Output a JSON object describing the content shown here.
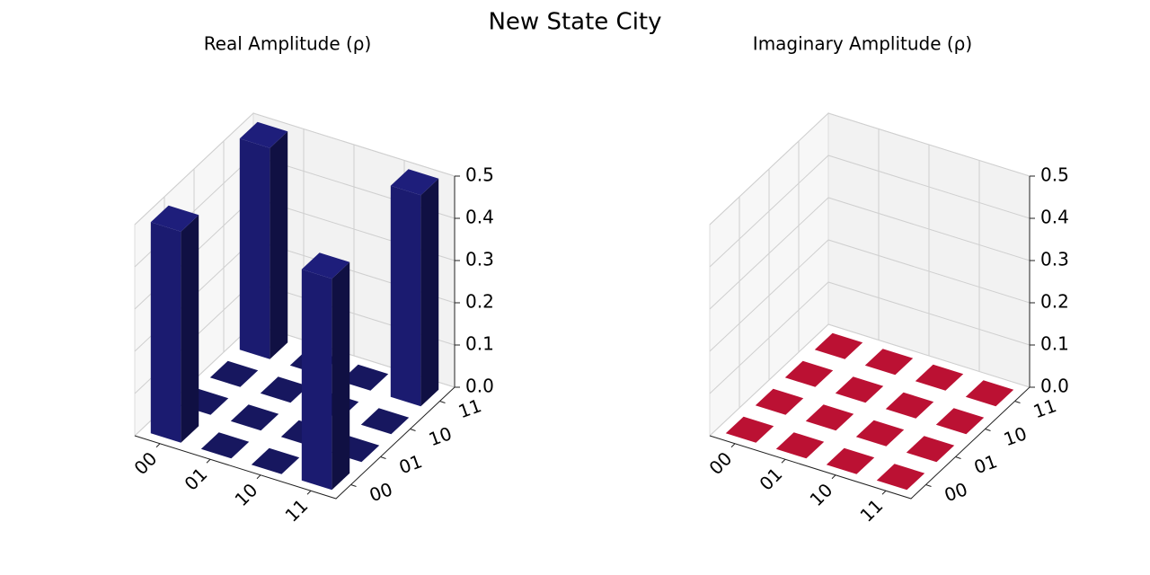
{
  "title": "New State City",
  "chart_data": [
    {
      "type": "bar3d",
      "title": "Real Amplitude (ρ)",
      "x_categories": [
        "00",
        "01",
        "10",
        "11"
      ],
      "y_categories": [
        "00",
        "01",
        "10",
        "11"
      ],
      "values": [
        [
          0.5,
          0,
          0,
          0.5
        ],
        [
          0,
          0,
          0,
          0
        ],
        [
          0,
          0,
          0,
          0
        ],
        [
          0.5,
          0,
          0,
          0.5
        ]
      ],
      "color": "#1b1b70",
      "zlim": [
        0,
        0.5
      ],
      "zticks": [
        {
          "value": 0,
          "label": "0.0"
        },
        0.1,
        0.2,
        0.3,
        0.4,
        0.5
      ]
    },
    {
      "type": "bar3d",
      "title": "Imaginary Amplitude (ρ)",
      "x_categories": [
        "00",
        "01",
        "10",
        "11"
      ],
      "y_categories": [
        "00",
        "01",
        "10",
        "11"
      ],
      "values": [
        [
          0,
          0,
          0,
          0
        ],
        [
          0,
          0,
          0,
          0
        ],
        [
          0,
          0,
          0,
          0
        ],
        [
          0,
          0,
          0,
          0
        ]
      ],
      "color": "#dc143c",
      "zlim": [
        0,
        0.5
      ],
      "zticks": [
        {
          "value": 0,
          "label": "0.0"
        },
        0.1,
        0.2,
        0.3,
        0.4,
        0.5
      ]
    }
  ]
}
